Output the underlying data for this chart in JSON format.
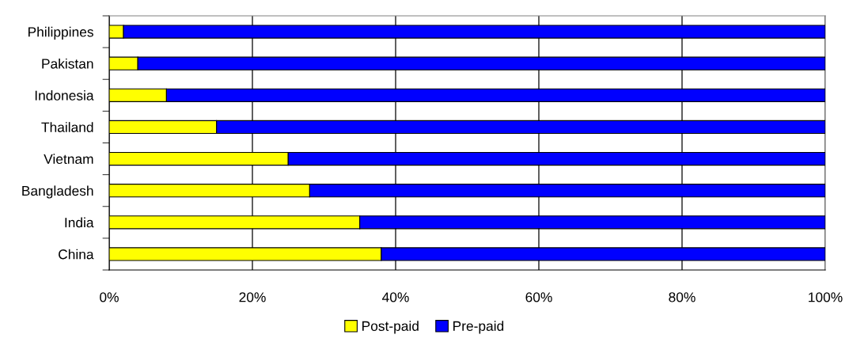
{
  "chart_data": {
    "type": "bar",
    "orientation": "horizontal",
    "stacked": true,
    "categories": [
      "Philippines",
      "Pakistan",
      "Indonesia",
      "Thailand",
      "Vietnam",
      "Bangladesh",
      "India",
      "China"
    ],
    "series": [
      {
        "name": "Post-paid",
        "color": "#ffff00",
        "values": [
          2,
          4,
          8,
          15,
          25,
          28,
          35,
          38
        ]
      },
      {
        "name": "Pre-paid",
        "color": "#0000ff",
        "values": [
          98,
          96,
          92,
          85,
          75,
          72,
          65,
          62
        ]
      }
    ],
    "xlim": [
      0,
      100
    ],
    "xticks": [
      {
        "value": 0,
        "label": "0%"
      },
      {
        "value": 20,
        "label": "20%"
      },
      {
        "value": 40,
        "label": "40%"
      },
      {
        "value": 60,
        "label": "60%"
      },
      {
        "value": 80,
        "label": "80%"
      },
      {
        "value": 100,
        "label": "100%"
      }
    ],
    "grid": "x",
    "legend": "bottom"
  }
}
